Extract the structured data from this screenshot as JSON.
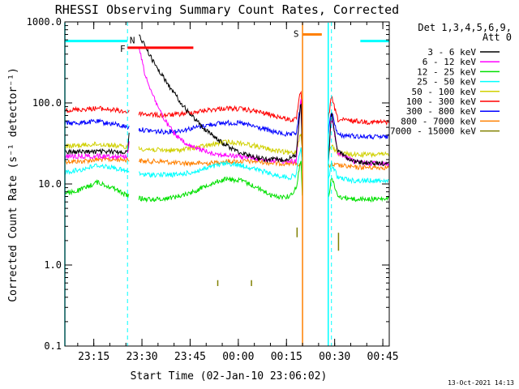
{
  "chart_data": {
    "type": "line",
    "title": "RHESSI Observing Summary Count Rates, Corrected",
    "xlabel": "Start Time (02-Jan-10 23:06:02)",
    "ylabel": "Corrected Count Rate (s⁻¹ detector⁻¹)",
    "y_scale": "log",
    "ylim": [
      0.1,
      1000.0
    ],
    "xlim_minutes": [
      0,
      101
    ],
    "x_ticks": [
      {
        "t": 9,
        "label": "23:15"
      },
      {
        "t": 24,
        "label": "23:30"
      },
      {
        "t": 39,
        "label": "23:45"
      },
      {
        "t": 54,
        "label": "00:00"
      },
      {
        "t": 69,
        "label": "00:15"
      },
      {
        "t": 84,
        "label": "00:30"
      },
      {
        "t": 99,
        "label": "00:45"
      }
    ],
    "y_ticks": [
      {
        "v": 0.1,
        "label": "0.1"
      },
      {
        "v": 1.0,
        "label": "1.0"
      },
      {
        "v": 10.0,
        "label": "10.0"
      },
      {
        "v": 100.0,
        "label": "100.0"
      },
      {
        "v": 1000.0,
        "label": "1000.0"
      }
    ],
    "legend_header": [
      "Det 1,3,4,5,6,9,",
      "Att 0"
    ],
    "legend_position": "top-right",
    "footer": "13-Oct-2021 14:13",
    "gaps": [
      [
        20,
        23
      ],
      [
        74,
        82
      ]
    ],
    "series": [
      {
        "name": "3 - 6 keV",
        "color": "#000000",
        "points": [
          [
            0,
            25
          ],
          [
            5,
            25
          ],
          [
            10,
            25
          ],
          [
            15,
            25
          ],
          [
            19.5,
            25
          ],
          [
            23,
            700
          ],
          [
            28,
            300
          ],
          [
            33,
            150
          ],
          [
            38,
            80
          ],
          [
            43,
            50
          ],
          [
            48,
            34
          ],
          [
            53,
            26
          ],
          [
            58,
            22
          ],
          [
            63,
            20
          ],
          [
            68,
            20
          ],
          [
            72,
            22
          ],
          [
            73.5,
            110
          ],
          [
            74,
            18
          ],
          [
            82,
            18
          ],
          [
            83,
            75
          ],
          [
            85,
            25
          ],
          [
            90,
            19
          ],
          [
            95,
            18
          ],
          [
            101,
            18
          ]
        ]
      },
      {
        "name": "6 - 12 keV",
        "color": "#ff00ff",
        "points": [
          [
            0,
            22
          ],
          [
            5,
            22
          ],
          [
            10,
            22
          ],
          [
            15,
            22
          ],
          [
            19.5,
            22
          ],
          [
            23,
            500
          ],
          [
            25,
            220
          ],
          [
            28,
            110
          ],
          [
            31,
            62
          ],
          [
            34,
            42
          ],
          [
            38,
            30
          ],
          [
            43,
            26
          ],
          [
            48,
            23
          ],
          [
            53,
            22
          ],
          [
            58,
            21
          ],
          [
            63,
            20
          ],
          [
            68,
            19
          ],
          [
            72,
            19
          ],
          [
            73.5,
            120
          ],
          [
            74,
            18
          ],
          [
            82,
            18
          ],
          [
            83,
            70
          ],
          [
            85,
            24
          ],
          [
            90,
            19
          ],
          [
            95,
            18
          ],
          [
            101,
            18
          ]
        ]
      },
      {
        "name": "12 - 25 keV",
        "color": "#00e000",
        "points": [
          [
            0,
            7.5
          ],
          [
            5,
            8.5
          ],
          [
            10,
            10.5
          ],
          [
            15,
            9
          ],
          [
            20,
            7
          ],
          [
            25,
            6.5
          ],
          [
            30,
            6.5
          ],
          [
            35,
            7
          ],
          [
            40,
            8
          ],
          [
            45,
            10
          ],
          [
            50,
            11.5
          ],
          [
            55,
            11
          ],
          [
            60,
            9
          ],
          [
            65,
            7
          ],
          [
            70,
            7
          ],
          [
            72,
            9
          ],
          [
            73.5,
            20
          ],
          [
            74,
            6.5
          ],
          [
            82,
            6.5
          ],
          [
            83,
            12
          ],
          [
            85,
            7
          ],
          [
            90,
            6.5
          ],
          [
            95,
            6.5
          ],
          [
            101,
            6.5
          ]
        ]
      },
      {
        "name": "25 - 50 keV",
        "color": "#00ffff",
        "points": [
          [
            0,
            14
          ],
          [
            5,
            15
          ],
          [
            10,
            17
          ],
          [
            15,
            16
          ],
          [
            20,
            14
          ],
          [
            25,
            13
          ],
          [
            30,
            13
          ],
          [
            35,
            13
          ],
          [
            40,
            14
          ],
          [
            45,
            16
          ],
          [
            50,
            18
          ],
          [
            55,
            17
          ],
          [
            60,
            15
          ],
          [
            65,
            13
          ],
          [
            70,
            12
          ],
          [
            72,
            13
          ],
          [
            73.5,
            30
          ],
          [
            74,
            12
          ],
          [
            82,
            11
          ],
          [
            83,
            18
          ],
          [
            85,
            12
          ],
          [
            90,
            11
          ],
          [
            95,
            11
          ],
          [
            101,
            11
          ]
        ]
      },
      {
        "name": "50 - 100 keV",
        "color": "#d0d000",
        "points": [
          [
            0,
            29
          ],
          [
            5,
            30
          ],
          [
            10,
            31
          ],
          [
            15,
            30
          ],
          [
            20,
            28
          ],
          [
            25,
            27
          ],
          [
            30,
            26
          ],
          [
            35,
            26
          ],
          [
            40,
            28
          ],
          [
            45,
            30
          ],
          [
            50,
            33
          ],
          [
            55,
            32
          ],
          [
            60,
            29
          ],
          [
            65,
            26
          ],
          [
            70,
            24
          ],
          [
            72,
            25
          ],
          [
            73.5,
            45
          ],
          [
            74,
            24
          ],
          [
            82,
            23
          ],
          [
            83,
            30
          ],
          [
            85,
            24
          ],
          [
            90,
            23
          ],
          [
            95,
            23
          ],
          [
            101,
            23
          ]
        ]
      },
      {
        "name": "100 - 300 keV",
        "color": "#ff0000",
        "points": [
          [
            0,
            82
          ],
          [
            5,
            83
          ],
          [
            10,
            86
          ],
          [
            15,
            82
          ],
          [
            20,
            77
          ],
          [
            25,
            73
          ],
          [
            30,
            70
          ],
          [
            35,
            72
          ],
          [
            40,
            77
          ],
          [
            45,
            82
          ],
          [
            50,
            86
          ],
          [
            55,
            84
          ],
          [
            60,
            78
          ],
          [
            65,
            70
          ],
          [
            70,
            62
          ],
          [
            72,
            62
          ],
          [
            73.5,
            150
          ],
          [
            74,
            60
          ],
          [
            82,
            60
          ],
          [
            83,
            120
          ],
          [
            85,
            62
          ],
          [
            90,
            60
          ],
          [
            95,
            58
          ],
          [
            101,
            58
          ]
        ]
      },
      {
        "name": "300 - 800 keV",
        "color": "#0000ff",
        "points": [
          [
            0,
            56
          ],
          [
            5,
            57
          ],
          [
            10,
            59
          ],
          [
            15,
            55
          ],
          [
            20,
            50
          ],
          [
            25,
            46
          ],
          [
            30,
            44
          ],
          [
            35,
            45
          ],
          [
            40,
            49
          ],
          [
            45,
            54
          ],
          [
            50,
            57
          ],
          [
            55,
            56
          ],
          [
            60,
            50
          ],
          [
            65,
            44
          ],
          [
            70,
            40
          ],
          [
            72,
            42
          ],
          [
            73.5,
            100
          ],
          [
            74,
            40
          ],
          [
            82,
            40
          ],
          [
            83,
            80
          ],
          [
            85,
            40
          ],
          [
            90,
            39
          ],
          [
            95,
            38
          ],
          [
            101,
            38
          ]
        ]
      },
      {
        "name": "800 - 7000 keV",
        "color": "#ff8000",
        "points": [
          [
            0,
            19
          ],
          [
            5,
            19
          ],
          [
            10,
            20
          ],
          [
            15,
            20
          ],
          [
            20,
            20
          ],
          [
            25,
            19
          ],
          [
            30,
            19
          ],
          [
            35,
            18
          ],
          [
            40,
            18
          ],
          [
            45,
            18
          ],
          [
            50,
            19
          ],
          [
            55,
            19
          ],
          [
            60,
            19
          ],
          [
            65,
            18
          ],
          [
            70,
            18
          ],
          [
            72,
            18
          ],
          [
            74,
            17
          ],
          [
            82,
            17
          ],
          [
            85,
            17
          ],
          [
            90,
            16
          ],
          [
            95,
            16
          ],
          [
            101,
            16
          ]
        ]
      },
      {
        "name": "7000 - 15000 keV",
        "color": "#808000",
        "points": [],
        "spikes": [
          [
            47.6,
            0.55,
            0.65
          ],
          [
            58.1,
            0.55,
            0.65
          ],
          [
            72.3,
            2.2,
            2.9
          ],
          [
            85.2,
            1.5,
            2.5
          ]
        ]
      }
    ],
    "markers": [
      {
        "label": "N",
        "color": "#00ffff",
        "start": 0,
        "end": 19.5,
        "value": 580,
        "label_at": 21
      },
      {
        "label": "N",
        "color": "#00ffff",
        "start": 101,
        "end": 92,
        "value": 580
      },
      {
        "label": "F",
        "color": "#ff0000",
        "start": 19.5,
        "end": 40,
        "value": 480,
        "label_at": 18
      },
      {
        "label": "S",
        "color": "#ff8000",
        "start": 74,
        "end": 80,
        "value": 700,
        "label_at": 72
      }
    ],
    "dashed_vlines": [
      {
        "t": 19.5,
        "color": "#00ffff"
      },
      {
        "t": 83,
        "color": "#00ffff"
      },
      {
        "t": 101,
        "color": "#00ffff"
      }
    ],
    "solid_vlines": [
      {
        "t": 0,
        "color": "#00ffff"
      },
      {
        "t": 74,
        "color": "#ff8000"
      },
      {
        "t": 82,
        "color": "#00ffff"
      }
    ]
  }
}
